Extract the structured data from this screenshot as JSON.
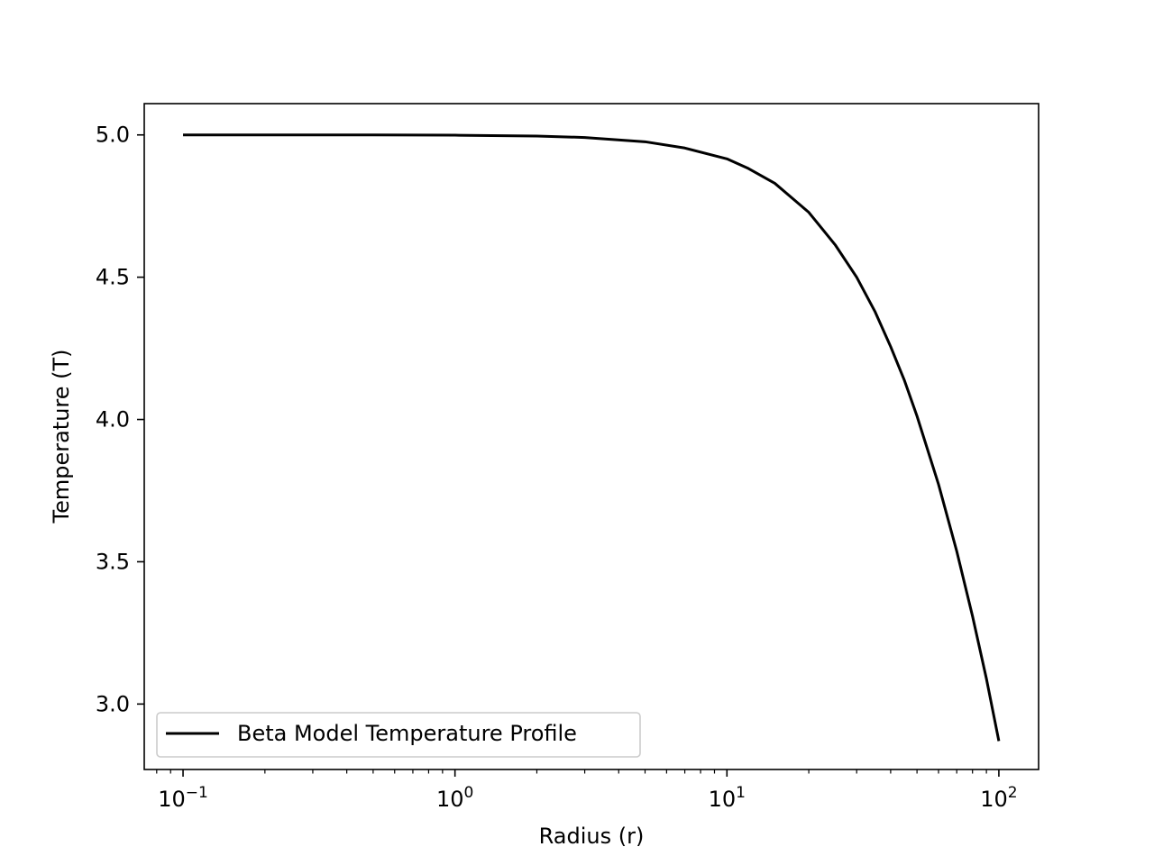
{
  "chart_data": {
    "type": "line",
    "title": "",
    "xlabel": "Radius (r)",
    "ylabel": "Temperature (T)",
    "xscale": "log",
    "xlim": [
      0.072,
      140
    ],
    "ylim": [
      2.77,
      5.11
    ],
    "x_ticks": [
      {
        "value": 0.1,
        "base": "10",
        "exp": "−1"
      },
      {
        "value": 1,
        "base": "10",
        "exp": "0"
      },
      {
        "value": 10,
        "base": "10",
        "exp": "1"
      },
      {
        "value": 100,
        "base": "10",
        "exp": "2"
      }
    ],
    "y_ticks": [
      {
        "value": 3.0,
        "label": "3.0"
      },
      {
        "value": 3.5,
        "label": "3.5"
      },
      {
        "value": 4.0,
        "label": "4.0"
      },
      {
        "value": 4.5,
        "label": "4.5"
      },
      {
        "value": 5.0,
        "label": "5.0"
      }
    ],
    "grid": false,
    "legend_position": "lower-left",
    "series": [
      {
        "name": "Beta Model Temperature Profile",
        "color": "#000000",
        "x": [
          0.1,
          0.2,
          0.5,
          1,
          2,
          3,
          5,
          7,
          10,
          12,
          15,
          20,
          25,
          30,
          35,
          40,
          45,
          50,
          60,
          70,
          80,
          90,
          100
        ],
        "y": [
          5.0,
          5.0,
          5.0,
          4.999,
          4.996,
          4.991,
          4.976,
          4.954,
          4.916,
          4.882,
          4.83,
          4.728,
          4.614,
          4.5,
          4.38,
          4.256,
          4.136,
          4.012,
          3.772,
          3.537,
          3.309,
          3.089,
          2.87
        ]
      }
    ]
  }
}
